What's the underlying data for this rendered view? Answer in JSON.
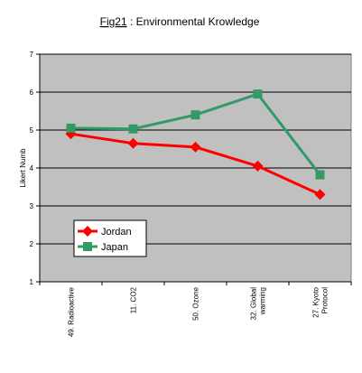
{
  "chart_data": {
    "type": "line",
    "title_prefix": "Fig21",
    "title_rest": " : Environmental Krowledge",
    "ylabel": "Likert Numb",
    "xlabel": "",
    "ylim": [
      1,
      7
    ],
    "yticks": [
      1,
      2,
      3,
      4,
      5,
      6,
      7
    ],
    "categories": [
      [
        "49. Radioactive"
      ],
      [
        "11. CO2"
      ],
      [
        "50. Ozone"
      ],
      [
        "32. Global",
        "warming"
      ],
      [
        "27. Kyoto",
        "Protocol"
      ]
    ],
    "series": [
      {
        "name": "Jordan",
        "values": [
          4.9,
          4.65,
          4.55,
          4.05,
          3.3
        ],
        "color": "#ff0000",
        "marker": "diamond"
      },
      {
        "name": "Japan",
        "values": [
          5.05,
          5.03,
          5.4,
          5.95,
          3.82
        ],
        "color": "#339966",
        "marker": "square"
      }
    ],
    "grid": true,
    "plot_background": "#c0c0c0",
    "legend_position": "lower-left inside plot"
  }
}
